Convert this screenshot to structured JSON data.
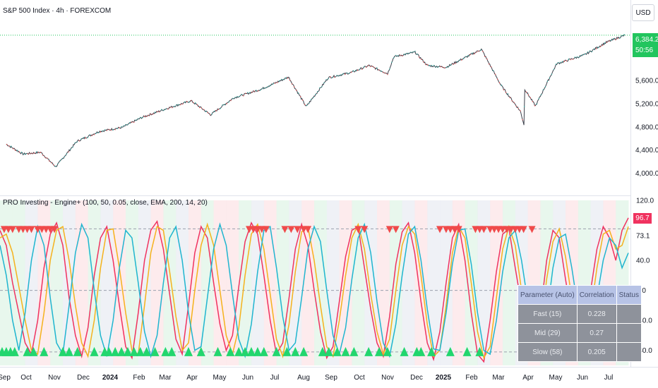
{
  "header": {
    "symbol_title": "S&P 500 Index · 4h · FOREXCOM",
    "indicator_title": "PRO Investing - Engine+ (100, 50, 0.05, close, EMA, 200, 14, 20)"
  },
  "currency_label": "USD",
  "price_tag": {
    "price": "6,384.2",
    "countdown": "50:56",
    "color": "#22c55e"
  },
  "osc_tag": {
    "value": "96.7",
    "color": "#f0325f"
  },
  "colors": {
    "up": "#26a69a",
    "down": "#ef5350",
    "fast": "#f0325f",
    "mid": "#f5b21c",
    "slow": "#1fb5cf",
    "buy_marker": "#22d66e",
    "sell_marker": "#f04a4a"
  },
  "param_table": {
    "headers": [
      "Parameter (Auto)",
      "Correlation",
      "Status"
    ],
    "rows": [
      [
        "Fast (15)",
        "0.228",
        ""
      ],
      [
        "Mid (29)",
        "0.27",
        ""
      ],
      [
        "Slow (58)",
        "0.205",
        ""
      ]
    ]
  },
  "chart_data": [
    {
      "type": "line",
      "title": "S&P 500 Index · 4h · FOREXCOM",
      "y_ticks": [
        "5,600.0",
        "5,200.0",
        "4,800.0",
        "4,400.0",
        "4,000.0"
      ],
      "y_tick_values": [
        5600,
        5200,
        4800,
        4400,
        4000
      ],
      "ylim": [
        3700,
        6700
      ],
      "x_ticks": [
        "Sep",
        "Oct",
        "Nov",
        "Dec",
        "2024",
        "Feb",
        "Mar",
        "Apr",
        "May",
        "Jun",
        "Jul",
        "Aug",
        "Sep",
        "Oct",
        "Nov",
        "Dec",
        "2025",
        "Feb",
        "Mar",
        "Apr",
        "May",
        "Jun",
        "Jul"
      ],
      "series": [
        {
          "x": [
            "2023-09-01",
            "2023-09-20",
            "2023-10-10",
            "2023-10-27",
            "2023-11-20",
            "2023-12-15",
            "2024-01-10",
            "2024-02-01",
            "2024-03-01",
            "2024-03-28",
            "2024-04-19",
            "2024-05-15",
            "2024-06-15",
            "2024-07-16",
            "2024-08-05",
            "2024-08-30",
            "2024-09-25",
            "2024-10-15",
            "2024-11-05",
            "2024-11-12",
            "2024-12-06",
            "2024-12-20",
            "2025-01-10",
            "2025-02-19",
            "2025-03-13",
            "2025-04-04",
            "2025-04-08",
            "2025-04-09",
            "2025-04-21",
            "2025-05-15",
            "2025-06-15",
            "2025-07-10",
            "2025-07-31"
          ],
          "values": [
            4500,
            4330,
            4360,
            4110,
            4550,
            4720,
            4790,
            4960,
            5120,
            5250,
            5010,
            5300,
            5450,
            5660,
            5150,
            5650,
            5740,
            5860,
            5720,
            6010,
            6090,
            5860,
            5830,
            6140,
            5520,
            5070,
            4840,
            5450,
            5160,
            5890,
            6040,
            6260,
            6384
          ]
        }
      ],
      "last_price": 6384.2
    },
    {
      "type": "line",
      "title": "PRO Investing - Engine+ (100, 50, 0.05, close, EMA, 200, 14, 20)",
      "y_ticks": [
        "120.0",
        "73.1",
        "40.0",
        "0.0",
        "-40.0",
        "-80.0"
      ],
      "y_tick_values": [
        120,
        73.1,
        40,
        0,
        -40,
        -80
      ],
      "ylim": [
        -100,
        120
      ],
      "reference_lines": [
        82,
        0,
        -82
      ],
      "last_value": 96.7,
      "series": [
        {
          "name": "Fast",
          "x_idx": [
            0,
            3,
            6,
            9,
            12,
            15,
            18,
            21,
            24,
            27,
            30,
            33,
            36,
            39,
            42,
            45,
            48,
            51,
            54,
            57,
            60,
            63,
            66,
            69,
            72,
            75,
            78,
            81,
            84,
            87,
            90,
            93,
            96,
            99,
            102,
            105,
            108,
            111,
            114,
            117,
            120,
            123,
            126,
            129,
            132,
            135,
            138,
            141,
            144,
            147,
            150,
            153,
            156,
            159,
            162,
            165,
            168,
            171,
            174,
            177,
            180,
            183,
            186,
            189,
            192,
            195,
            198,
            201,
            204,
            207,
            210,
            213,
            216,
            219,
            222,
            225,
            228,
            231,
            234,
            237,
            240,
            243,
            246,
            249,
            252,
            255,
            258,
            261,
            264,
            267,
            270,
            273,
            276,
            279,
            282,
            285,
            288,
            291,
            294,
            297,
            300
          ],
          "values": [
            80,
            60,
            10,
            -30,
            -70,
            -85,
            -40,
            30,
            75,
            90,
            60,
            -10,
            -60,
            -88,
            -50,
            20,
            70,
            85,
            40,
            -20,
            -75,
            -90,
            -30,
            40,
            80,
            92,
            55,
            -5,
            -65,
            -85,
            -20,
            50,
            85,
            70,
            10,
            -45,
            -80,
            -60,
            5,
            65,
            90,
            75,
            20,
            -40,
            -85,
            -70,
            -10,
            55,
            88,
            60,
            0,
            -55,
            -90,
            -75,
            -15,
            45,
            80,
            85,
            30,
            -25,
            -70,
            -88,
            -35,
            35,
            78,
            90,
            50,
            -15,
            -70,
            -92,
            -55,
            10,
            70,
            88,
            40,
            -30,
            -85,
            -95,
            -40,
            25,
            75,
            82,
            30,
            -20,
            -65,
            -80,
            -30,
            40,
            80,
            70,
            15,
            -35,
            -75,
            -60,
            0,
            55,
            85,
            70,
            40,
            80,
            96.7
          ]
        },
        {
          "name": "Mid",
          "x_idx": [
            0,
            3,
            6,
            9,
            12,
            15,
            18,
            21,
            24,
            27,
            30,
            33,
            36,
            39,
            42,
            45,
            48,
            51,
            54,
            57,
            60,
            63,
            66,
            69,
            72,
            75,
            78,
            81,
            84,
            87,
            90,
            93,
            96,
            99,
            102,
            105,
            108,
            111,
            114,
            117,
            120,
            123,
            126,
            129,
            132,
            135,
            138,
            141,
            144,
            147,
            150,
            153,
            156,
            159,
            162,
            165,
            168,
            171,
            174,
            177,
            180,
            183,
            186,
            189,
            192,
            195,
            198,
            201,
            204,
            207,
            210,
            213,
            216,
            219,
            222,
            225,
            228,
            231,
            234,
            237,
            240,
            243,
            246,
            249,
            252,
            255,
            258,
            261,
            264,
            267,
            270,
            273,
            276,
            279,
            282,
            285,
            288,
            291,
            294,
            297,
            300
          ],
          "values": [
            70,
            75,
            50,
            5,
            -40,
            -80,
            -85,
            -30,
            40,
            80,
            85,
            40,
            -20,
            -70,
            -88,
            -40,
            30,
            80,
            82,
            30,
            -30,
            -80,
            -85,
            -20,
            50,
            85,
            80,
            25,
            -35,
            -80,
            -70,
            0,
            60,
            88,
            60,
            0,
            -60,
            -85,
            -50,
            20,
            75,
            88,
            55,
            -5,
            -65,
            -88,
            -45,
            25,
            78,
            85,
            40,
            -20,
            -75,
            -88,
            -40,
            20,
            70,
            88,
            55,
            -5,
            -55,
            -85,
            -65,
            0,
            60,
            85,
            75,
            20,
            -45,
            -88,
            -80,
            -20,
            50,
            85,
            70,
            10,
            -55,
            -90,
            -75,
            -10,
            55,
            85,
            60,
            0,
            -50,
            -82,
            -55,
            15,
            65,
            82,
            45,
            -10,
            -60,
            -80,
            -30,
            30,
            75,
            80,
            55,
            60,
            85
          ]
        },
        {
          "name": "Slow",
          "x_idx": [
            0,
            3,
            6,
            9,
            12,
            15,
            18,
            21,
            24,
            27,
            30,
            33,
            36,
            39,
            42,
            45,
            48,
            51,
            54,
            57,
            60,
            63,
            66,
            69,
            72,
            75,
            78,
            81,
            84,
            87,
            90,
            93,
            96,
            99,
            102,
            105,
            108,
            111,
            114,
            117,
            120,
            123,
            126,
            129,
            132,
            135,
            138,
            141,
            144,
            147,
            150,
            153,
            156,
            159,
            162,
            165,
            168,
            171,
            174,
            177,
            180,
            183,
            186,
            189,
            192,
            195,
            198,
            201,
            204,
            207,
            210,
            213,
            216,
            219,
            222,
            225,
            228,
            231,
            234,
            237,
            240,
            243,
            246,
            249,
            252,
            255,
            258,
            261,
            264,
            267,
            270,
            273,
            276,
            279,
            282,
            285,
            288,
            291,
            294,
            297,
            300
          ],
          "values": [
            60,
            20,
            -40,
            -80,
            -30,
            40,
            85,
            60,
            -10,
            -70,
            -85,
            -20,
            50,
            88,
            70,
            0,
            -60,
            -88,
            -40,
            30,
            80,
            70,
            10,
            -55,
            -88,
            -60,
            10,
            70,
            85,
            40,
            -30,
            -80,
            -75,
            -10,
            55,
            88,
            60,
            -5,
            -65,
            -88,
            -45,
            25,
            80,
            85,
            30,
            -35,
            -80,
            -70,
            -10,
            55,
            85,
            65,
            0,
            -60,
            -85,
            -50,
            15,
            70,
            88,
            50,
            -15,
            -70,
            -88,
            -45,
            20,
            75,
            85,
            40,
            -25,
            -78,
            -80,
            -30,
            35,
            80,
            82,
            35,
            -30,
            -80,
            -85,
            -40,
            25,
            70,
            80,
            40,
            -15,
            -60,
            -78,
            -35,
            30,
            70,
            75,
            30,
            -25,
            -70,
            -65,
            -10,
            40,
            70,
            60,
            30,
            50
          ]
        }
      ],
      "sell_marker_idx": [
        2,
        4,
        6,
        9,
        11,
        13,
        15,
        18,
        20,
        22,
        24,
        26,
        119,
        121,
        123,
        125,
        127,
        136,
        139,
        142,
        145,
        147,
        171,
        174,
        186,
        189,
        210,
        213,
        215,
        217,
        219,
        227,
        229,
        231,
        234,
        236,
        238,
        240,
        242,
        244,
        246,
        248,
        250,
        254
      ],
      "buy_marker_idx": [
        1,
        3,
        5,
        7,
        13,
        16,
        21,
        30,
        33,
        37,
        45,
        50,
        52,
        55,
        58,
        61,
        64,
        67,
        70,
        74,
        79,
        82,
        90,
        96,
        104,
        110,
        114,
        117,
        120,
        123,
        126,
        132,
        137,
        141,
        145,
        154,
        157,
        161,
        165,
        169,
        176,
        181,
        185,
        193,
        199,
        201,
        206,
        215,
        223,
        229,
        295
      ]
    }
  ]
}
